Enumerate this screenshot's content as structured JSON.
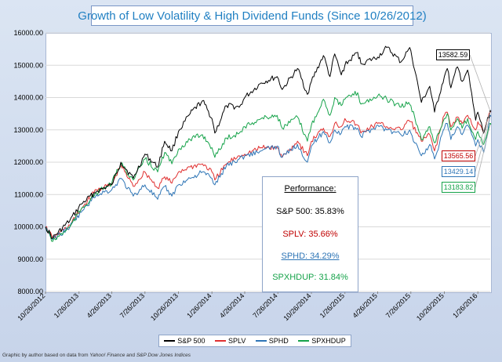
{
  "chart_data": {
    "type": "line",
    "title": "Growth of Low Volatility  & High Dividend Funds (Since 10/26/2012)",
    "ylim": [
      8000,
      16000
    ],
    "yticks": [
      "16000.00",
      "15000.00",
      "14000.00",
      "13000.00",
      "12000.00",
      "11000.00",
      "10000.00",
      "9000.00",
      "8000.00"
    ],
    "ytick_values": [
      16000,
      15000,
      14000,
      13000,
      12000,
      11000,
      10000,
      9000,
      8000
    ],
    "xticks": [
      "10/26/2012",
      "1/26/2013",
      "4/26/2013",
      "7/26/2013",
      "10/26/2013",
      "1/26/2014",
      "4/26/2014",
      "7/26/2014",
      "10/26/2014",
      "1/26/2015",
      "4/26/2015",
      "7/26/2015",
      "10/26/2015",
      "1/26/2016"
    ],
    "grid": true,
    "series": [
      {
        "name": "S&P 500",
        "color": "#000000",
        "x": [
          "2012-10-26",
          "2012-11-15",
          "2013-01-01",
          "2013-02-01",
          "2013-03-15",
          "2013-04-26",
          "2013-05-21",
          "2013-06-24",
          "2013-07-26",
          "2013-08-30",
          "2013-09-18",
          "2013-10-08",
          "2013-10-26",
          "2013-11-27",
          "2013-12-31",
          "2014-01-26",
          "2014-02-03",
          "2014-03-07",
          "2014-04-11",
          "2014-04-26",
          "2014-06-10",
          "2014-07-24",
          "2014-08-07",
          "2014-09-18",
          "2014-10-15",
          "2014-10-26",
          "2014-11-28",
          "2014-12-16",
          "2014-12-29",
          "2015-01-16",
          "2015-01-26",
          "2015-03-02",
          "2015-03-11",
          "2015-04-26",
          "2015-05-21",
          "2015-06-29",
          "2015-07-20",
          "2015-07-26",
          "2015-08-24",
          "2015-09-16",
          "2015-09-29",
          "2015-10-26",
          "2015-11-03",
          "2015-11-13",
          "2015-12-01",
          "2015-12-14",
          "2015-12-29",
          "2016-01-20",
          "2016-01-26",
          "2016-02-11",
          "2016-02-29"
        ],
        "values": [
          10000,
          9650,
          10200,
          10700,
          11100,
          11300,
          12000,
          11500,
          12250,
          11850,
          12650,
          12350,
          12950,
          13500,
          13900,
          13350,
          12900,
          13750,
          13700,
          14000,
          14450,
          14650,
          14250,
          14900,
          14100,
          14500,
          15300,
          14650,
          15350,
          14700,
          15000,
          15400,
          15050,
          15250,
          15550,
          15100,
          15500,
          15450,
          13850,
          14350,
          13550,
          14650,
          14900,
          14300,
          14950,
          14500,
          14850,
          13300,
          13550,
          12900,
          13582.59
        ]
      },
      {
        "name": "SPLV",
        "color": "#e03030",
        "x": [
          "2012-10-26",
          "2012-11-15",
          "2013-01-01",
          "2013-02-01",
          "2013-03-15",
          "2013-04-26",
          "2013-05-21",
          "2013-06-24",
          "2013-07-26",
          "2013-08-30",
          "2013-09-18",
          "2013-10-08",
          "2013-10-26",
          "2013-11-27",
          "2013-12-31",
          "2014-01-26",
          "2014-02-03",
          "2014-03-07",
          "2014-04-11",
          "2014-04-26",
          "2014-06-10",
          "2014-07-24",
          "2014-08-07",
          "2014-09-18",
          "2014-10-15",
          "2014-10-26",
          "2014-11-28",
          "2014-12-16",
          "2014-12-29",
          "2015-01-16",
          "2015-01-26",
          "2015-03-02",
          "2015-03-11",
          "2015-04-26",
          "2015-05-21",
          "2015-06-29",
          "2015-07-20",
          "2015-07-26",
          "2015-08-24",
          "2015-09-16",
          "2015-09-29",
          "2015-10-26",
          "2015-11-03",
          "2015-11-13",
          "2015-12-01",
          "2015-12-14",
          "2015-12-29",
          "2016-01-20",
          "2016-01-26",
          "2016-02-11",
          "2016-02-29"
        ],
        "values": [
          10000,
          9650,
          10050,
          10550,
          11150,
          11300,
          11900,
          11250,
          11700,
          11200,
          11550,
          11350,
          11700,
          11850,
          11950,
          11700,
          11450,
          11950,
          12200,
          12250,
          12450,
          12450,
          12150,
          12650,
          12200,
          12650,
          13050,
          12800,
          13200,
          13100,
          13350,
          13150,
          12900,
          13200,
          13100,
          13000,
          13300,
          13250,
          12650,
          12850,
          12350,
          13450,
          13550,
          13100,
          13400,
          13200,
          13450,
          13000,
          13250,
          12900,
          13565.56
        ]
      },
      {
        "name": "SPHD",
        "color": "#2e75b6",
        "x": [
          "2012-10-26",
          "2012-11-15",
          "2013-01-01",
          "2013-02-01",
          "2013-03-15",
          "2013-04-26",
          "2013-05-21",
          "2013-06-24",
          "2013-07-26",
          "2013-08-30",
          "2013-09-18",
          "2013-10-08",
          "2013-10-26",
          "2013-11-27",
          "2013-12-31",
          "2014-01-26",
          "2014-02-03",
          "2014-03-07",
          "2014-04-11",
          "2014-04-26",
          "2014-06-10",
          "2014-07-24",
          "2014-08-07",
          "2014-09-18",
          "2014-10-15",
          "2014-10-26",
          "2014-11-28",
          "2014-12-16",
          "2014-12-29",
          "2015-01-16",
          "2015-01-26",
          "2015-03-02",
          "2015-03-11",
          "2015-04-26",
          "2015-05-21",
          "2015-06-29",
          "2015-07-20",
          "2015-07-26",
          "2015-08-24",
          "2015-09-16",
          "2015-09-29",
          "2015-10-26",
          "2015-11-03",
          "2015-11-13",
          "2015-12-01",
          "2015-12-14",
          "2015-12-29",
          "2016-01-20",
          "2016-01-26",
          "2016-02-11",
          "2016-02-29"
        ],
        "values": [
          10000,
          9600,
          10000,
          10450,
          11000,
          11150,
          11500,
          10950,
          11300,
          10850,
          11250,
          10950,
          11300,
          11500,
          11700,
          11500,
          11300,
          11900,
          12100,
          12200,
          12350,
          12500,
          12150,
          12550,
          12000,
          12500,
          12950,
          12600,
          13000,
          12900,
          13100,
          13050,
          12800,
          13150,
          13000,
          12850,
          12950,
          12900,
          12200,
          12550,
          12100,
          13050,
          13200,
          12700,
          13100,
          12850,
          13150,
          12500,
          12700,
          12300,
          13429.14
        ]
      },
      {
        "name": "SPXHDUP",
        "color": "#16a34a",
        "x": [
          "2012-10-26",
          "2012-11-15",
          "2013-01-01",
          "2013-02-01",
          "2013-03-15",
          "2013-04-26",
          "2013-05-21",
          "2013-06-24",
          "2013-07-26",
          "2013-08-30",
          "2013-09-18",
          "2013-10-08",
          "2013-10-26",
          "2013-11-27",
          "2013-12-31",
          "2014-01-26",
          "2014-02-03",
          "2014-03-07",
          "2014-04-11",
          "2014-04-26",
          "2014-06-10",
          "2014-07-24",
          "2014-08-07",
          "2014-09-18",
          "2014-10-15",
          "2014-10-26",
          "2014-11-28",
          "2014-12-16",
          "2014-12-29",
          "2015-01-16",
          "2015-01-26",
          "2015-03-02",
          "2015-03-11",
          "2015-04-26",
          "2015-05-21",
          "2015-06-29",
          "2015-07-20",
          "2015-07-26",
          "2015-08-24",
          "2015-09-16",
          "2015-09-29",
          "2015-10-26",
          "2015-11-03",
          "2015-11-13",
          "2015-12-01",
          "2015-12-14",
          "2015-12-29",
          "2016-01-20",
          "2016-01-26",
          "2016-02-11",
          "2016-02-29"
        ],
        "values": [
          10000,
          9550,
          10000,
          10550,
          11050,
          11350,
          11950,
          11450,
          12100,
          11700,
          12300,
          11950,
          12400,
          12700,
          12850,
          12450,
          12150,
          12750,
          12900,
          13100,
          13350,
          13450,
          13050,
          13400,
          12650,
          13150,
          13950,
          13450,
          14000,
          13750,
          13950,
          14150,
          13800,
          14050,
          13950,
          13700,
          13850,
          13750,
          12700,
          13100,
          12600,
          13350,
          13500,
          13000,
          13350,
          13050,
          13350,
          12700,
          12950,
          12550,
          13183.82
        ]
      }
    ],
    "end_labels": [
      {
        "name": "S&P 500",
        "text": "13582.59",
        "color": "#000000"
      },
      {
        "name": "SPLV",
        "text": "13565.56",
        "color": "#c00000"
      },
      {
        "name": "SPHD",
        "text": "13429.14",
        "color": "#2e75b6"
      },
      {
        "name": "SPXHDUP",
        "text": "13183.82",
        "color": "#16a34a"
      }
    ],
    "performance": {
      "title": "Performance:",
      "lines": [
        {
          "text": "S&P 500: 35.83%",
          "color": "#000000"
        },
        {
          "text": "SPLV: 35.66%",
          "color": "#c00000"
        },
        {
          "text": "SPHD: 34.29%",
          "color": "#2e75b6"
        },
        {
          "text": "SPXHDUP: 31.84%",
          "color": "#16a34a"
        }
      ]
    },
    "legend": [
      "S&P 500",
      "SPLV",
      "SPHD",
      "SPXHDUP"
    ],
    "legend_placement": "bottom"
  },
  "source_text": {
    "prefix": "Graphic by author based on data from ",
    "s1": "Yahoo! Finance",
    "mid": " and ",
    "s2": "S&P Dow Jones Indices"
  }
}
